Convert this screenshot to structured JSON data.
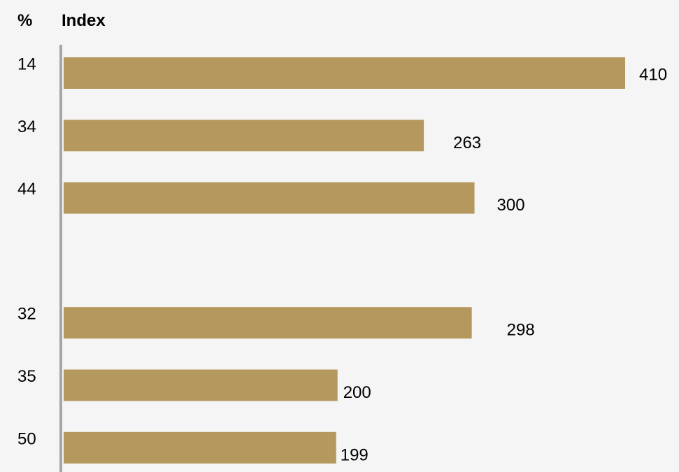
{
  "chart_data": {
    "type": "bar",
    "orientation": "horizontal",
    "header": {
      "percent_label": "%",
      "index_label": "Index"
    },
    "rows": [
      {
        "percent": "14",
        "index": 410
      },
      {
        "percent": "34",
        "index": 263
      },
      {
        "percent": "44",
        "index": 300
      },
      {
        "percent": "",
        "index": null
      },
      {
        "percent": "32",
        "index": 298
      },
      {
        "percent": "35",
        "index": 200
      },
      {
        "percent": "50",
        "index": 199
      }
    ],
    "xlim": [
      0,
      410
    ],
    "grid": false,
    "legend": "none",
    "colors": {
      "bar": "#b5985e",
      "axis": "#a6a6a6",
      "background": "#f5f5f5"
    }
  }
}
